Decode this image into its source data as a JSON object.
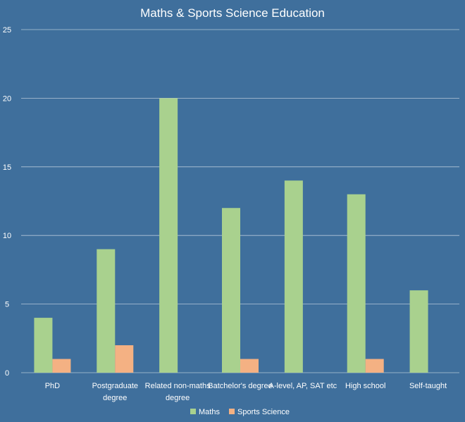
{
  "chart_data": {
    "type": "bar",
    "title": "Maths & Sports Science Education",
    "xlabel": "",
    "ylabel": "",
    "categories": [
      [
        "PhD"
      ],
      [
        "Postgraduate",
        "degree"
      ],
      [
        "Related non-maths",
        "degree"
      ],
      [
        "Batchelor's degree"
      ],
      [
        "A-level, AP, SAT etc"
      ],
      [
        "High school"
      ],
      [
        "Self-taught"
      ]
    ],
    "series": [
      {
        "name": "Maths",
        "color": "#a9d18e",
        "values": [
          4,
          9,
          20,
          12,
          14,
          13,
          6
        ]
      },
      {
        "name": "Sports Science",
        "color": "#f4b183",
        "values": [
          1,
          2,
          0,
          1,
          0,
          1,
          0
        ]
      }
    ],
    "ylim": [
      0,
      25
    ],
    "yticks": [
      "0",
      "5",
      "10",
      "15",
      "20",
      "25"
    ],
    "grid": true,
    "legend": "bottom"
  }
}
